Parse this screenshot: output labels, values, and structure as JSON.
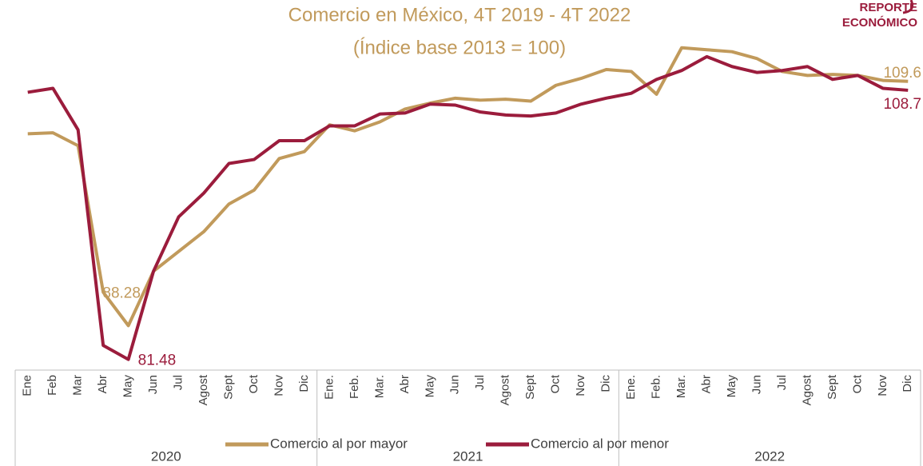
{
  "chart_data": {
    "type": "line",
    "title": "Comercio en México,  4T 2019 -  4T 2022",
    "subtitle": "(Índice base 2013 = 100)",
    "logo": [
      "REPORTE",
      "ECONÓMICO"
    ],
    "categories": [
      "Ene",
      "Feb",
      "Mar",
      "Abr",
      "May",
      "Jun",
      "Jul",
      "Agost",
      "Sept",
      "Oct",
      "Nov",
      "Dic",
      "Ene.",
      "Feb.",
      "Mar.",
      "Abr",
      "May",
      "Jun",
      "Jul",
      "Agost",
      "Sept",
      "Oct",
      "Nov",
      "Dic",
      "Ene.",
      "Feb.",
      "Mar.",
      "Abr",
      "May",
      "Jun",
      "Jul",
      "Agost",
      "Sept",
      "Oct",
      "Nov",
      "Dic"
    ],
    "groups": [
      "2020",
      "2021",
      "2022"
    ],
    "ylim": [
      80,
      115
    ],
    "series": [
      {
        "name": "Comercio al por mayor",
        "color": "#c19a5b",
        "values": [
          104.3,
          104.4,
          103.1,
          88.28,
          84.9,
          90.4,
          92.4,
          94.4,
          97.2,
          98.6,
          101.8,
          102.5,
          105.2,
          104.6,
          105.5,
          106.8,
          107.4,
          107.9,
          107.7,
          107.8,
          107.6,
          109.2,
          109.9,
          110.8,
          110.6,
          108.3,
          113.0,
          112.8,
          112.6,
          111.9,
          110.6,
          110.2,
          110.3,
          110.2,
          109.7,
          109.6
        ],
        "value_labels": [
          null,
          null,
          null,
          "88.28",
          null,
          null,
          null,
          null,
          null,
          null,
          null,
          null,
          null,
          null,
          null,
          null,
          null,
          null,
          null,
          null,
          null,
          null,
          null,
          null,
          null,
          null,
          null,
          null,
          null,
          null,
          null,
          null,
          null,
          null,
          null,
          "109.6"
        ]
      },
      {
        "name": "Comercio al por menor",
        "color": "#9b1c3c",
        "values": [
          108.5,
          108.9,
          104.7,
          82.9,
          81.48,
          90.4,
          95.9,
          98.3,
          101.3,
          101.7,
          103.6,
          103.6,
          105.1,
          105.1,
          106.3,
          106.4,
          107.3,
          107.2,
          106.5,
          106.2,
          106.1,
          106.4,
          107.3,
          107.9,
          108.4,
          109.8,
          110.7,
          112.1,
          111.1,
          110.5,
          110.7,
          111.1,
          109.8,
          110.2,
          108.9,
          108.7
        ],
        "value_labels": [
          null,
          null,
          null,
          null,
          "81.48",
          null,
          null,
          null,
          null,
          null,
          null,
          null,
          null,
          null,
          null,
          null,
          null,
          null,
          null,
          null,
          null,
          null,
          null,
          null,
          null,
          null,
          null,
          null,
          null,
          null,
          null,
          null,
          null,
          null,
          null,
          "108.7"
        ]
      }
    ]
  }
}
